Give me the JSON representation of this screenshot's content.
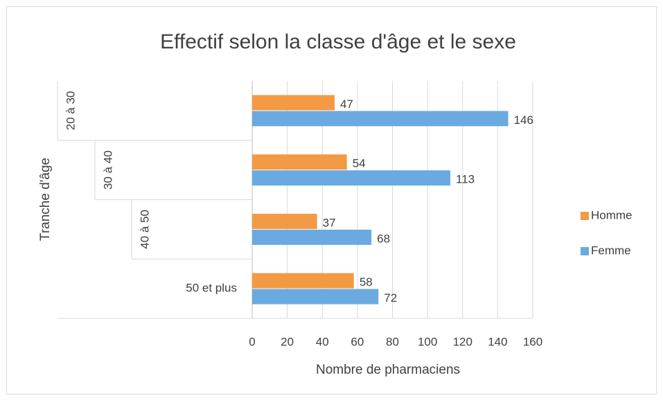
{
  "chart_data": {
    "type": "bar",
    "orientation": "horizontal",
    "title": "Effectif selon la classe d'âge et le sexe",
    "xlabel": "Nombre de pharmaciens",
    "ylabel": "Tranche d'âge",
    "categories": [
      "20 à 30",
      "30 à 40",
      "40 à 50",
      "50 et plus"
    ],
    "series": [
      {
        "name": "Homme",
        "color": "#f39a45",
        "values": [
          47,
          54,
          37,
          58
        ]
      },
      {
        "name": "Femme",
        "color": "#6aaae0",
        "values": [
          146,
          113,
          68,
          72
        ]
      }
    ],
    "xlim": [
      0,
      160
    ],
    "xticks": [
      0,
      20,
      40,
      60,
      80,
      100,
      120,
      140,
      160
    ],
    "grid": true,
    "legend": "right"
  }
}
